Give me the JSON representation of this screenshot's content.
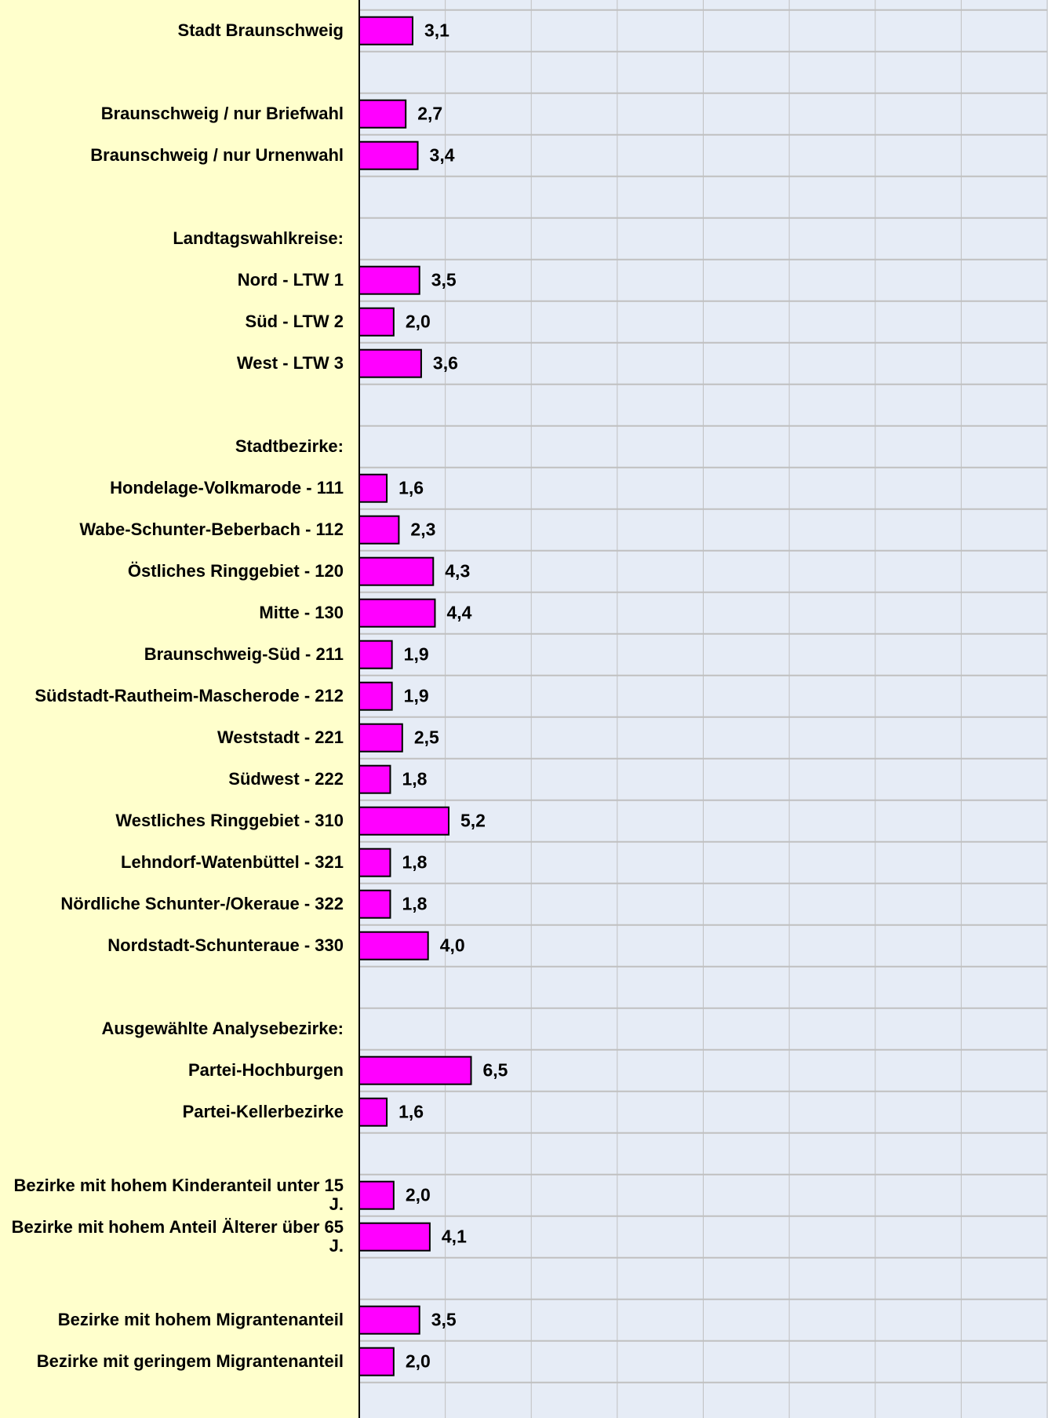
{
  "chart_data": {
    "type": "hbar",
    "categories": [
      "Stadt Braunschweig",
      null,
      "Braunschweig / nur Briefwahl",
      "Braunschweig / nur Urnenwahl",
      null,
      "Landtagswahlkreise:",
      "Nord - LTW 1",
      "Süd - LTW 2",
      "West - LTW 3",
      null,
      "Stadtbezirke:",
      "Hondelage-Volkmarode - 111",
      "Wabe-Schunter-Beberbach - 112",
      "Östliches Ringgebiet - 120",
      "Mitte - 130",
      "Braunschweig-Süd - 211",
      "Südstadt-Rautheim-Mascherode - 212",
      "Weststadt - 221",
      "Südwest - 222",
      "Westliches Ringgebiet - 310",
      "Lehndorf-Watenbüttel - 321",
      "Nördliche Schunter-/Okeraue - 322",
      "Nordstadt-Schunteraue - 330",
      null,
      "Ausgewählte Analysebezirke:",
      "Partei-Hochburgen",
      "Partei-Kellerbezirke",
      null,
      "Bezirke mit hohem Kinderanteil unter 15 J.",
      "Bezirke mit hohem Anteil Älterer über 65 J.",
      null,
      "Bezirke mit hohem Migrantenanteil",
      "Bezirke mit geringem Migrantenanteil"
    ],
    "values": [
      3.1,
      null,
      2.7,
      3.4,
      null,
      null,
      3.5,
      2.0,
      3.6,
      null,
      null,
      1.6,
      2.3,
      4.3,
      4.4,
      1.9,
      1.9,
      2.5,
      1.8,
      5.2,
      1.8,
      1.8,
      4.0,
      null,
      null,
      6.5,
      1.6,
      null,
      2.0,
      4.1,
      null,
      3.5,
      2.0
    ],
    "value_labels": [
      "3,1",
      null,
      "2,7",
      "3,4",
      null,
      null,
      "3,5",
      "2,0",
      "3,6",
      null,
      null,
      "1,6",
      "2,3",
      "4,3",
      "4,4",
      "1,9",
      "1,9",
      "2,5",
      "1,8",
      "5,2",
      "1,8",
      "1,8",
      "4,0",
      null,
      null,
      "6,5",
      "1,6",
      null,
      "2,0",
      "4,1",
      null,
      "3,5",
      "2,0"
    ],
    "color": "#ff00ff",
    "xlim": [
      0,
      40
    ],
    "xticks": [
      0,
      5,
      10,
      15,
      20,
      25,
      30,
      35,
      40
    ],
    "grid": true
  }
}
